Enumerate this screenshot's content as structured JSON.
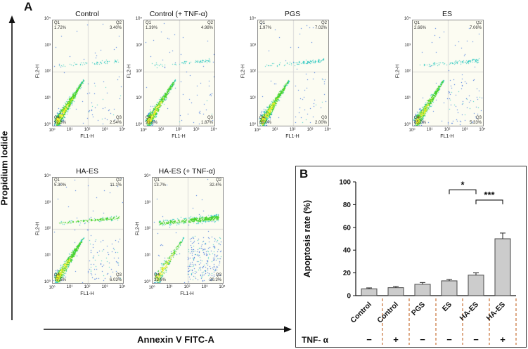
{
  "panelA": {
    "label": "A",
    "y_axis_label": "Propidium Iodide",
    "x_axis_label": "Annexin V FITC-A",
    "quad_names": [
      "Q1",
      "Q2",
      "Q3",
      "Q4"
    ],
    "flow_axis": {
      "x": "FL1-H",
      "y": "FL2-H",
      "ticks": [
        "10⁰",
        "10¹",
        "10²",
        "10³",
        "10⁴"
      ]
    },
    "plots": [
      {
        "title": "Control",
        "q1": "1.72%",
        "q2": "3.40%",
        "q3": "2.54%",
        "q4": "92.3%"
      },
      {
        "title": "Control (+ TNF-α)",
        "q1": "1.39%",
        "q2": "4.98%",
        "q3": "1.87%",
        "q4": "91.8%"
      },
      {
        "title": "PGS",
        "q1": "1.97%",
        "q2": "7.02%",
        "q3": "2.00%",
        "q4": "89.0%"
      },
      {
        "title": "ES",
        "q1": "2.66%",
        "q2": "7.06%",
        "q3": "5.33%",
        "q4": "85.0%"
      },
      {
        "title": "HA-ES",
        "q1": "5.30%",
        "q2": "11.1%",
        "q3": "6.03%",
        "q4": "77.5%"
      },
      {
        "title": "HA-ES (+ TNF-α)",
        "q1": "13.7%",
        "q2": "32.4%",
        "q3": "20.3%",
        "q4": "33.6%"
      }
    ]
  },
  "panelB": {
    "label": "B",
    "bar_color": "#cccccc",
    "dash_color": "#c87137"
  },
  "chart_data": [
    {
      "type": "scatter",
      "title": "Control",
      "xlabel": "FL1-H",
      "ylabel": "FL2-H",
      "xscale": "log",
      "yscale": "log",
      "xlim": [
        1,
        10000
      ],
      "ylim": [
        1,
        10000
      ],
      "quadrant_percent": {
        "Q1": 1.72,
        "Q2": 3.4,
        "Q3": 2.54,
        "Q4": 92.3
      }
    },
    {
      "type": "scatter",
      "title": "Control (+ TNF-α)",
      "xlabel": "FL1-H",
      "ylabel": "FL2-H",
      "xscale": "log",
      "yscale": "log",
      "xlim": [
        1,
        10000
      ],
      "ylim": [
        1,
        10000
      ],
      "quadrant_percent": {
        "Q1": 1.39,
        "Q2": 4.98,
        "Q3": 1.87,
        "Q4": 91.8
      }
    },
    {
      "type": "scatter",
      "title": "PGS",
      "xlabel": "FL1-H",
      "ylabel": "FL2-H",
      "xscale": "log",
      "yscale": "log",
      "xlim": [
        1,
        10000
      ],
      "ylim": [
        1,
        10000
      ],
      "quadrant_percent": {
        "Q1": 1.97,
        "Q2": 7.02,
        "Q3": 2.0,
        "Q4": 89.0
      }
    },
    {
      "type": "scatter",
      "title": "ES",
      "xlabel": "FL1-H",
      "ylabel": "FL2-H",
      "xscale": "log",
      "yscale": "log",
      "xlim": [
        1,
        10000
      ],
      "ylim": [
        1,
        10000
      ],
      "quadrant_percent": {
        "Q1": 2.66,
        "Q2": 7.06,
        "Q3": 5.33,
        "Q4": 85.0
      }
    },
    {
      "type": "scatter",
      "title": "HA-ES",
      "xlabel": "FL1-H",
      "ylabel": "FL2-H",
      "xscale": "log",
      "yscale": "log",
      "xlim": [
        1,
        10000
      ],
      "ylim": [
        1,
        10000
      ],
      "quadrant_percent": {
        "Q1": 5.3,
        "Q2": 11.1,
        "Q3": 6.03,
        "Q4": 77.5
      }
    },
    {
      "type": "scatter",
      "title": "HA-ES (+ TNF-α)",
      "xlabel": "FL1-H",
      "ylabel": "FL2-H",
      "xscale": "log",
      "yscale": "log",
      "xlim": [
        1,
        10000
      ],
      "ylim": [
        1,
        10000
      ],
      "quadrant_percent": {
        "Q1": 13.7,
        "Q2": 32.4,
        "Q3": 20.3,
        "Q4": 33.6
      }
    },
    {
      "type": "bar",
      "title": "Apoptosis rate",
      "ylabel": "Apoptosis rate (%)",
      "ylim": [
        0,
        100
      ],
      "yticks": [
        0,
        20,
        40,
        60,
        80,
        100
      ],
      "categories": [
        "Control",
        "Control",
        "PGS",
        "ES",
        "HA-ES",
        "HA-ES"
      ],
      "tnf_label": "TNF- α",
      "tnf": [
        "−",
        "+",
        "−",
        "−",
        "−",
        "+"
      ],
      "values": [
        6,
        7,
        10,
        13,
        18,
        50
      ],
      "errors": [
        0.8,
        1,
        1.5,
        1.2,
        2,
        5
      ],
      "significance": [
        {
          "from": 3,
          "to": 4,
          "y": 93,
          "label": "*"
        },
        {
          "from": 4,
          "to": 5,
          "y": 84,
          "label": "***"
        }
      ]
    }
  ]
}
